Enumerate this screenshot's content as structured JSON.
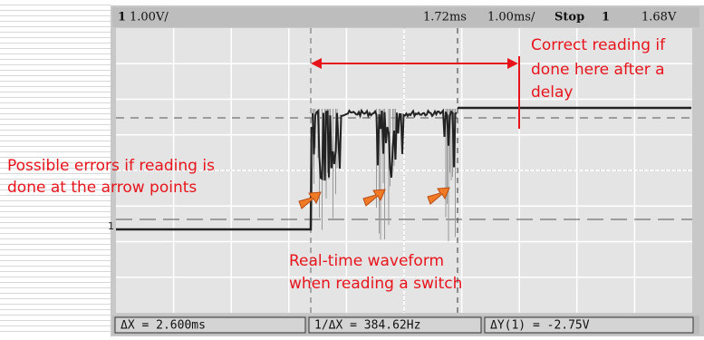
{
  "header": {
    "channel": "1",
    "scale": "1.00V/",
    "trigger_time": "1.72ms",
    "time_scale": "1.00ms/",
    "status": "Stop",
    "trigger_channel": "1",
    "trigger_level": "1.68V"
  },
  "channel_marker": "1",
  "footer": {
    "delta_x": "ΔX = 2.600ms",
    "inverse_delta_x": "1/ΔX = 384.62Hz",
    "delta_y": "ΔY(1) = -2.75V"
  },
  "annotations": {
    "correct": [
      "Correct reading if",
      "done here after a",
      "delay"
    ],
    "errors": [
      "Possible errors if reading is",
      "done at the arrow points"
    ],
    "waveform": [
      "Real-time waveform",
      "when reading a switch"
    ]
  }
}
